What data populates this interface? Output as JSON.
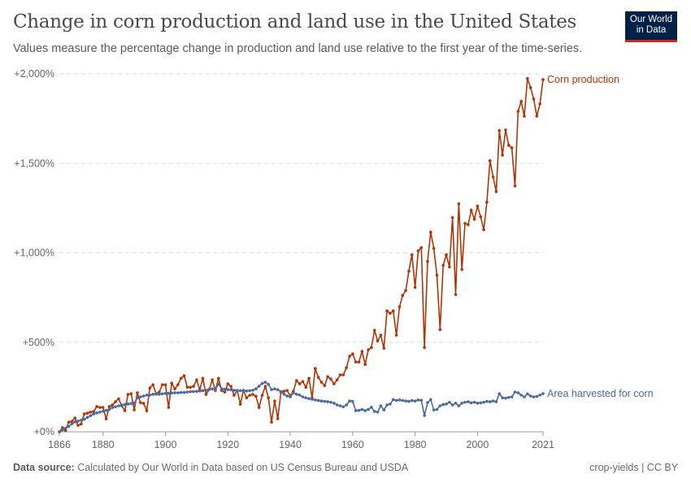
{
  "header": {
    "title": "Change in corn production and land use in the United States",
    "subtitle": "Values measure the percentage change in production and land use relative to the first year of the time-series.",
    "logo_text": "Our World in Data"
  },
  "footer": {
    "source_label": "Data source:",
    "source_text": "Calculated by Our World in Data based on US Census Bureau and USDA",
    "license": "crop-yields | CC BY"
  },
  "chart_data": {
    "type": "line",
    "title": "Change in corn production and land use in the United States",
    "xlabel": "",
    "ylabel": "",
    "xlim": [
      1866,
      2021
    ],
    "ylim": [
      0,
      2000
    ],
    "grid": true,
    "x_ticks": [
      "1866",
      "1880",
      "1900",
      "1920",
      "1940",
      "1960",
      "1980",
      "2000",
      "2021"
    ],
    "y_ticks": [
      {
        "value": 0,
        "label": "+0%"
      },
      {
        "value": 500,
        "label": "+500%"
      },
      {
        "value": 1000,
        "label": "+1,000%"
      },
      {
        "value": 1500,
        "label": "+1,500%"
      },
      {
        "value": 2000,
        "label": "+2,000%"
      }
    ],
    "legend": "inline-right",
    "start_year": 1866,
    "series": [
      {
        "name": "Corn production",
        "color": "#b13507",
        "values": [
          0,
          23,
          7,
          54,
          59,
          77,
          36,
          44,
          100,
          104,
          110,
          113,
          141,
          136,
          136,
          73,
          141,
          150,
          168,
          184,
          145,
          118,
          209,
          213,
          123,
          218,
          163,
          159,
          118,
          245,
          263,
          213,
          222,
          263,
          263,
          136,
          272,
          240,
          263,
          299,
          313,
          249,
          249,
          254,
          290,
          236,
          299,
          209,
          236,
          290,
          231,
          299,
          231,
          222,
          268,
          254,
          204,
          231,
          154,
          231,
          190,
          204,
          209,
          199,
          136,
          204,
          254,
          190,
          54,
          172,
          73,
          222,
          227,
          231,
          200,
          227,
          286,
          268,
          281,
          249,
          299,
          190,
          354,
          304,
          277,
          258,
          308,
          295,
          268,
          290,
          318,
          318,
          358,
          422,
          435,
          390,
          390,
          449,
          376,
          458,
          471,
          567,
          508,
          540,
          467,
          676,
          662,
          676,
          540,
          698,
          762,
          789,
          898,
          989,
          807,
          1011,
          1029,
          471,
          952,
          1116,
          1025,
          875,
          571,
          930,
          989,
          921,
          1197,
          767,
          1274,
          907,
          1165,
          1157,
          1238,
          1188,
          1261,
          1202,
          1129,
          1283,
          1515,
          1424,
          1342,
          1683,
          1546,
          1687,
          1601,
          1587,
          1374,
          1791,
          1846,
          1764,
          1974,
          1923,
          1860,
          1764,
          1832,
          1968
        ]
      },
      {
        "name": "Area harvested for corn",
        "color": "#4c6a9c",
        "values": [
          0,
          10,
          20,
          30,
          45,
          55,
          60,
          65,
          70,
          80,
          90,
          100,
          105,
          110,
          115,
          120,
          125,
          135,
          140,
          145,
          150,
          152,
          155,
          158,
          160,
          190,
          195,
          200,
          205,
          205,
          210,
          210,
          210,
          212,
          215,
          215,
          217,
          218,
          218,
          220,
          220,
          222,
          224,
          225,
          226,
          228,
          230,
          232,
          238,
          240,
          235,
          268,
          240,
          238,
          236,
          235,
          232,
          230,
          230,
          228,
          228,
          230,
          232,
          240,
          255,
          270,
          277,
          265,
          236,
          240,
          235,
          225,
          210,
          200,
          195,
          218,
          210,
          205,
          195,
          190,
          185,
          182,
          178,
          175,
          172,
          170,
          168,
          165,
          160,
          150,
          145,
          140,
          150,
          172,
          170,
          118,
          120,
          125,
          118,
          125,
          137,
          114,
          110,
          145,
          122,
          150,
          155,
          180,
          175,
          178,
          175,
          172,
          170,
          175,
          172,
          178,
          176,
          91,
          163,
          180,
          122,
          125,
          145,
          152,
          155,
          165,
          150,
          160,
          145,
          160,
          165,
          168,
          162,
          165,
          160,
          162,
          165,
          170,
          168,
          172,
          168,
          213,
          190,
          188,
          192,
          195,
          222,
          218,
          205,
          195,
          212,
          200,
          195,
          198,
          205,
          213
        ]
      }
    ]
  }
}
